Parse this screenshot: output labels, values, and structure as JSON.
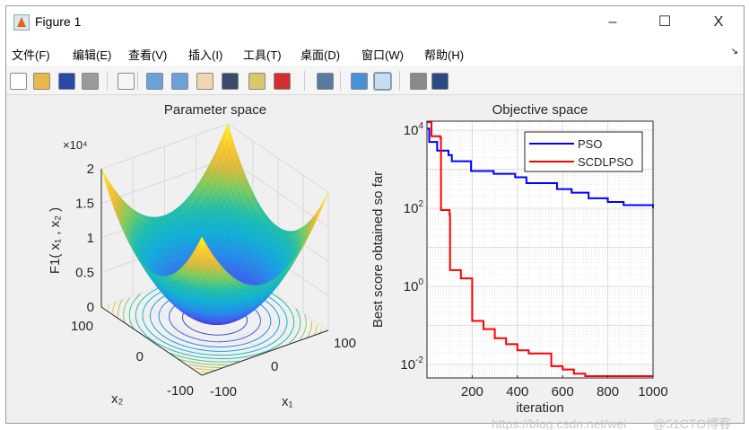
{
  "window": {
    "title": "Figure 1",
    "minimize": "–",
    "maximize": "☐",
    "close": "X"
  },
  "menu": [
    "文件(F)",
    "编辑(E)",
    "查看(V)",
    "插入(I)",
    "工具(T)",
    "桌面(D)",
    "窗口(W)",
    "帮助(H)"
  ],
  "menu_arrow": "↘",
  "toolbar": [
    {
      "icon": "new-figure-icon",
      "color": "#ffffff"
    },
    {
      "icon": "open-file-icon",
      "color": "#e8b84a"
    },
    {
      "icon": "save-icon",
      "color": "#2a4aa8"
    },
    {
      "icon": "print-icon",
      "color": "#9a9a9a"
    },
    {
      "icon": "pointer-icon",
      "color": "#f5f5f5"
    },
    {
      "icon": "zoom-in-icon",
      "color": "#6aa2d8"
    },
    {
      "icon": "zoom-out-icon",
      "color": "#6aa2d8"
    },
    {
      "icon": "pan-hand-icon",
      "color": "#f1d5b0"
    },
    {
      "icon": "rotate-3d-icon",
      "color": "#3b4b6b"
    },
    {
      "icon": "data-cursor-icon",
      "color": "#d8c86a"
    },
    {
      "icon": "brush-icon",
      "color": "#d03030"
    },
    {
      "icon": "link-plot-icon",
      "color": "#5a7aa0"
    },
    {
      "icon": "colorbar-icon",
      "color": "#4a90d8"
    },
    {
      "icon": "legend-icon",
      "color": "#c8dcf0"
    },
    {
      "icon": "hide-plot-tools-icon",
      "color": "#8a8a8a"
    },
    {
      "icon": "show-plot-tools-icon",
      "color": "#2a4a80"
    }
  ],
  "surface_plot": {
    "title": "Parameter space",
    "zlabel": "F1( x₁ , x₂ )",
    "xlabel": "x₁",
    "ylabel": "x₂",
    "z_exponent": "×10⁴",
    "z_ticks": [
      "0",
      "0.5",
      "1",
      "1.5",
      "2"
    ],
    "x1_ticks": [
      "-100",
      "0",
      "100"
    ],
    "x2_ticks": [
      "100",
      "0",
      "-100"
    ],
    "function": "x1^2 + x2^2",
    "range": [
      -100,
      100
    ],
    "zlim": [
      0,
      20000
    ],
    "colormap": "parula",
    "contours_on_base": true
  },
  "chart_data": {
    "type": "line",
    "title": "Objective space",
    "xlabel": "iteration",
    "ylabel": "Best score obtained so far",
    "xlim": [
      1,
      1000
    ],
    "ylim": [
      0.0045,
      17000
    ],
    "yscale": "log",
    "grid": true,
    "minor_grid": true,
    "x_ticks": [
      "200",
      "400",
      "600",
      "800",
      "1000"
    ],
    "y_ticks": [
      {
        "base": "10",
        "exp": "4",
        "value": 10000
      },
      {
        "base": "10",
        "exp": "2",
        "value": 100
      },
      {
        "base": "10",
        "exp": "0",
        "value": 1
      },
      {
        "base": "10",
        "exp": "-2",
        "value": 0.01
      }
    ],
    "legend_position": "top-right",
    "series": [
      {
        "name": "PSO",
        "color": "#0000ff",
        "points": [
          [
            1,
            11000
          ],
          [
            10,
            5000
          ],
          [
            45,
            3000
          ],
          [
            95,
            2300
          ],
          [
            110,
            1600
          ],
          [
            195,
            900
          ],
          [
            295,
            760
          ],
          [
            390,
            620
          ],
          [
            440,
            440
          ],
          [
            575,
            310
          ],
          [
            640,
            250
          ],
          [
            715,
            180
          ],
          [
            800,
            145
          ],
          [
            870,
            120
          ],
          [
            1000,
            102
          ]
        ]
      },
      {
        "name": "SCDLPSO",
        "color": "#ff0000",
        "points": [
          [
            1,
            16000
          ],
          [
            20,
            7000
          ],
          [
            60,
            6300
          ],
          [
            62,
            90
          ],
          [
            100,
            70
          ],
          [
            102,
            2.6
          ],
          [
            150,
            1.6
          ],
          [
            200,
            0.13
          ],
          [
            250,
            0.08
          ],
          [
            300,
            0.047
          ],
          [
            350,
            0.033
          ],
          [
            400,
            0.023
          ],
          [
            450,
            0.019
          ],
          [
            550,
            0.009
          ],
          [
            600,
            0.0074
          ],
          [
            650,
            0.0058
          ],
          [
            700,
            0.005
          ],
          [
            1000,
            0.005
          ]
        ]
      }
    ]
  },
  "watermark": {
    "left": "https://blog.csdn.net/wei",
    "right": "@51CTO博客"
  }
}
